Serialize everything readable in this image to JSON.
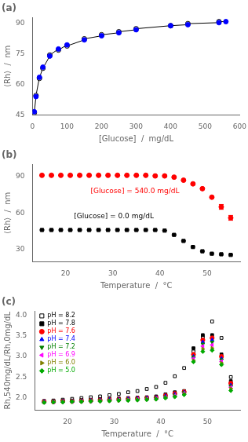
{
  "chart_data": [
    {
      "type": "scatter",
      "title": "(a)",
      "xlabel": "[Glucose]  /  mg/dL",
      "ylabel": "⟨Rh⟩  /  nm",
      "xlim": [
        0,
        600
      ],
      "ylim": [
        45,
        93
      ],
      "xticks": [
        0,
        100,
        200,
        300,
        400,
        500,
        600
      ],
      "yticks": [
        45,
        60,
        75,
        90
      ],
      "grid": false,
      "series": [
        {
          "color": "black",
          "marker": "none",
          "line_style": "solid",
          "x": [
            5,
            5,
            10,
            10,
            20,
            20,
            30,
            30,
            50,
            50,
            75,
            75,
            100,
            100,
            150,
            150,
            200,
            200,
            250,
            250,
            300,
            300,
            400,
            400,
            450,
            450,
            540,
            540,
            560
          ],
          "values": [
            46.5,
            46.0,
            54.0,
            54.5,
            63.5,
            63.0,
            68.5,
            68.0,
            74.0,
            74.5,
            77.5,
            77.0,
            79.5,
            79.0,
            82.0,
            82.5,
            84.0,
            84.5,
            85.5,
            86.0,
            87.0,
            87.5,
            89.0,
            89.0,
            89.5,
            90.0,
            90.5,
            91.0,
            91.0
          ]
        },
        {
          "color": "black",
          "marker": "circle-open",
          "line_style": "none",
          "x": [
            5,
            10,
            20,
            30,
            50,
            75,
            100,
            150,
            200,
            250,
            300,
            400,
            450,
            540
          ],
          "values": [
            46.0,
            54.5,
            63.0,
            68.0,
            74.5,
            77.0,
            79.0,
            82.5,
            84.5,
            86.0,
            87.5,
            89.0,
            90.0,
            91.0
          ]
        },
        {
          "color": "blue",
          "marker": "circle",
          "line_style": "none",
          "x": [
            5,
            10,
            20,
            30,
            50,
            75,
            100,
            150,
            200,
            250,
            300,
            400,
            450,
            540,
            560
          ],
          "values": [
            46.5,
            54.0,
            63.5,
            68.5,
            74.0,
            77.5,
            79.5,
            82.0,
            84.0,
            85.5,
            87.0,
            89.0,
            89.5,
            90.5,
            91.0
          ]
        }
      ]
    },
    {
      "type": "scatter",
      "title": "(b)",
      "xlabel": "Temperature  /  °C",
      "ylabel": "⟨Rh⟩  /  nm",
      "xlim": [
        13,
        57
      ],
      "ylim": [
        20,
        100
      ],
      "xticks": [
        20,
        30,
        40,
        50
      ],
      "yticks": [
        30,
        60,
        90
      ],
      "grid": false,
      "annotations": [
        {
          "text": "[Glucose] = 540.0 mg/dL",
          "color": "red"
        },
        {
          "text": "[Glucose] = 0.0 mg/dL",
          "color": "black"
        }
      ],
      "series": [
        {
          "color": "red",
          "marker": "circle",
          "line_style": "none",
          "x": [
            15,
            17,
            19,
            21,
            23,
            25,
            27,
            29,
            31,
            33,
            35,
            37,
            39,
            41,
            43,
            45,
            47,
            49,
            51,
            53,
            55
          ],
          "values": [
            91.0,
            91.0,
            91.0,
            91.0,
            91.0,
            91.0,
            91.0,
            91.0,
            91.0,
            91.0,
            91.0,
            91.0,
            90.5,
            90.5,
            89.5,
            87.0,
            84.0,
            80.0,
            73.0,
            65.0,
            56.0
          ],
          "errors": [
            0,
            0,
            0,
            0,
            0,
            0,
            0,
            0,
            0,
            0,
            0,
            0,
            0,
            0,
            0,
            0,
            0,
            0,
            0,
            2.0,
            2.0
          ]
        },
        {
          "color": "black",
          "marker": "square",
          "line_style": "none",
          "x": [
            15,
            17,
            19,
            21,
            23,
            25,
            27,
            29,
            31,
            33,
            35,
            37,
            39,
            41,
            43,
            45,
            47,
            49,
            51,
            53,
            55
          ],
          "values": [
            46.0,
            46.0,
            46.0,
            46.0,
            46.0,
            46.0,
            46.0,
            46.0,
            46.0,
            46.0,
            46.0,
            46.0,
            46.0,
            45.5,
            42.0,
            37.0,
            32.0,
            28.5,
            26.5,
            26.0,
            25.5
          ],
          "errors": [
            0,
            0,
            0,
            0,
            0,
            0,
            0,
            0,
            0,
            0,
            0,
            0,
            0,
            0,
            0,
            0,
            0,
            0,
            0,
            0,
            0
          ]
        }
      ]
    },
    {
      "type": "scatter",
      "title": "(c)",
      "xlabel": "Temperature  /  °C",
      "ylabel": "Rh,540mg/dL/Rh,0mg/dL",
      "xlim": [
        13,
        57
      ],
      "ylim": [
        1.7,
        4.1
      ],
      "xticks": [
        20,
        30,
        40,
        50
      ],
      "yticks": [
        {
          "value": 2.0,
          "label": "2.0"
        },
        2.5,
        {
          "value": 3.0,
          "label": "3.0"
        },
        3.5,
        {
          "value": 4.0,
          "label": "4.0"
        }
      ],
      "grid": false,
      "legend": "upper left",
      "series": [
        {
          "name": "pH = 8.2",
          "color": "black",
          "marker": "square-open",
          "line_style": "none",
          "x": [
            15,
            17,
            19,
            21,
            23,
            25,
            27,
            29,
            31,
            33,
            35,
            37,
            39,
            41,
            43,
            45,
            47,
            49,
            51,
            53,
            55
          ],
          "values": [
            1.92,
            1.93,
            1.95,
            1.97,
            1.99,
            2.01,
            2.03,
            2.06,
            2.09,
            2.13,
            2.16,
            2.21,
            2.26,
            2.36,
            2.52,
            2.72,
            3.12,
            3.47,
            3.85,
            3.45,
            2.5
          ]
        },
        {
          "name": "pH = 7.8",
          "color": "black",
          "marker": "square",
          "line_style": "none",
          "x": [
            15,
            17,
            19,
            21,
            23,
            25,
            27,
            29,
            31,
            33,
            35,
            37,
            39,
            41,
            43,
            45,
            47,
            49,
            51,
            53,
            55
          ],
          "values": [
            1.9,
            1.91,
            1.92,
            1.93,
            1.94,
            1.95,
            1.96,
            1.97,
            1.98,
            1.99,
            2.0,
            2.01,
            2.03,
            2.08,
            2.13,
            2.16,
            3.2,
            3.52,
            3.52,
            3.05,
            2.4
          ]
        },
        {
          "name": "pH = 7.6",
          "color": "red",
          "marker": "circle",
          "line_style": "none",
          "x": [
            15,
            17,
            19,
            21,
            23,
            25,
            27,
            29,
            31,
            33,
            35,
            37,
            39,
            41,
            43,
            45,
            47,
            49,
            51,
            53,
            55
          ],
          "values": [
            1.9,
            1.9,
            1.91,
            1.91,
            1.92,
            1.93,
            1.94,
            1.95,
            1.96,
            1.97,
            1.98,
            1.99,
            2.0,
            2.05,
            2.1,
            2.14,
            3.05,
            3.4,
            3.45,
            3.0,
            2.35
          ]
        },
        {
          "name": "pH = 7.4",
          "color": "blue",
          "marker": "triangle-up",
          "line_style": "none",
          "x": [
            15,
            17,
            19,
            21,
            23,
            25,
            27,
            29,
            31,
            33,
            35,
            37,
            39,
            41,
            43,
            45,
            47,
            49,
            51,
            53,
            55
          ],
          "values": [
            1.9,
            1.9,
            1.91,
            1.91,
            1.92,
            1.93,
            1.94,
            1.95,
            1.96,
            1.97,
            1.98,
            1.99,
            2.0,
            2.04,
            2.08,
            2.13,
            3.0,
            3.35,
            3.4,
            2.95,
            2.3
          ]
        },
        {
          "name": "pH = 7.2",
          "color": "green",
          "marker": "triangle-down",
          "line_style": "none",
          "x": [
            15,
            17,
            19,
            21,
            23,
            25,
            27,
            29,
            31,
            33,
            35,
            37,
            39,
            41,
            43,
            45,
            47,
            49,
            51,
            53,
            55
          ],
          "values": [
            1.89,
            1.9,
            1.9,
            1.91,
            1.91,
            1.92,
            1.93,
            1.94,
            1.95,
            1.96,
            1.97,
            1.98,
            1.99,
            2.02,
            2.06,
            2.12,
            2.98,
            3.3,
            3.35,
            2.92,
            2.28
          ]
        },
        {
          "name": "pH = 6.9",
          "color": "magenta",
          "marker": "triangle-left",
          "line_style": "none",
          "x": [
            15,
            17,
            19,
            21,
            23,
            25,
            27,
            29,
            31,
            33,
            35,
            37,
            39,
            41,
            43,
            45,
            47,
            49,
            51,
            53,
            55
          ],
          "values": [
            1.89,
            1.89,
            1.9,
            1.9,
            1.91,
            1.91,
            1.92,
            1.93,
            1.94,
            1.95,
            1.96,
            1.97,
            1.98,
            2.01,
            2.05,
            2.11,
            2.95,
            3.25,
            3.28,
            2.88,
            2.25
          ]
        },
        {
          "name": "pH = 6.0",
          "color": "#808000",
          "marker": "triangle-right",
          "line_style": "none",
          "x": [
            15,
            17,
            19,
            21,
            23,
            25,
            27,
            29,
            31,
            33,
            35,
            37,
            39,
            41,
            43,
            45,
            47,
            49,
            51,
            53,
            55
          ],
          "values": [
            1.89,
            1.89,
            1.9,
            1.9,
            1.91,
            1.91,
            1.92,
            1.92,
            1.93,
            1.94,
            1.95,
            1.96,
            1.97,
            2.0,
            2.03,
            2.09,
            2.9,
            3.18,
            3.2,
            2.84,
            2.22
          ]
        },
        {
          "name": "pH = 5.0",
          "color": "#00aa00",
          "marker": "diamond",
          "line_style": "none",
          "x": [
            15,
            17,
            19,
            21,
            23,
            25,
            27,
            29,
            31,
            33,
            35,
            37,
            39,
            41,
            43,
            45,
            47,
            49,
            51,
            53,
            55
          ],
          "values": [
            1.88,
            1.89,
            1.89,
            1.9,
            1.9,
            1.91,
            1.91,
            1.92,
            1.93,
            1.93,
            1.94,
            1.95,
            1.96,
            1.99,
            2.02,
            2.07,
            2.87,
            3.12,
            3.15,
            2.8,
            2.17
          ]
        }
      ]
    }
  ]
}
